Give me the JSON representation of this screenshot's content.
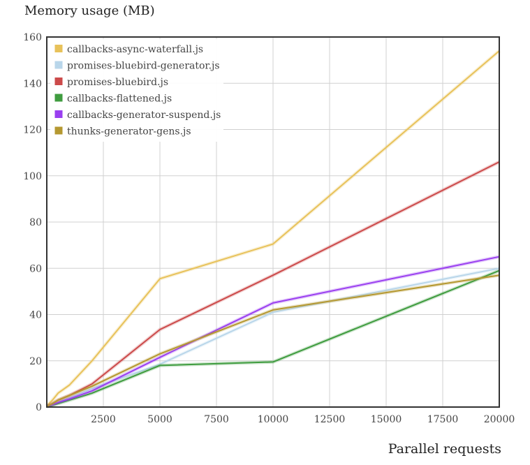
{
  "chart_data": {
    "type": "line",
    "title": "",
    "ylabel": "Memory usage (MB)",
    "xlabel": "Parallel requests",
    "xlim": [
      0,
      20000
    ],
    "ylim": [
      0,
      160
    ],
    "xticks": [
      2500,
      5000,
      7500,
      10000,
      12500,
      15000,
      17500,
      20000
    ],
    "yticks": [
      0,
      20,
      40,
      60,
      80,
      100,
      120,
      140,
      160
    ],
    "x": [
      1,
      250,
      500,
      1000,
      2000,
      5000,
      10000,
      20000
    ],
    "grid": true,
    "legend_position": "top-left",
    "series": [
      {
        "name": "callbacks-async-waterfall.js",
        "color": "#e8c25a",
        "values": [
          0.5,
          3,
          6,
          9.5,
          20,
          55.5,
          70.5,
          154
        ]
      },
      {
        "name": "promises-bluebird-generator.js",
        "color": "#b9d6ea",
        "values": [
          0.2,
          1,
          2,
          4,
          8,
          18.5,
          41,
          60
        ]
      },
      {
        "name": "promises-bluebird.js",
        "color": "#cc4a4a",
        "values": [
          0.3,
          1.5,
          3,
          5,
          10,
          33.5,
          57,
          106
        ]
      },
      {
        "name": "callbacks-flattened.js",
        "color": "#3f9c3f",
        "values": [
          0.2,
          0.8,
          1.5,
          3,
          6,
          18,
          19.5,
          59
        ]
      },
      {
        "name": "callbacks-generator-suspend.js",
        "color": "#9a3ff0",
        "values": [
          0.3,
          1,
          2,
          3.5,
          7,
          21.5,
          45,
          65
        ]
      },
      {
        "name": "thunks-generator-gens.js",
        "color": "#b59830",
        "values": [
          0.3,
          1.5,
          3,
          5,
          9,
          23,
          42,
          57
        ]
      }
    ]
  }
}
